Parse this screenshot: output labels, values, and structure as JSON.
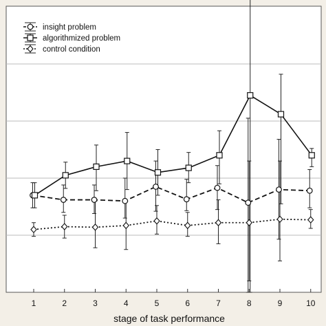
{
  "chart_data": {
    "type": "line",
    "xlabel": "stage of task performance",
    "ylabel": "",
    "categories": [
      "1",
      "2",
      "3",
      "4",
      "5",
      "6",
      "7",
      "8",
      "9",
      "10"
    ],
    "ylim": [
      0,
      5
    ],
    "grid": true,
    "legend_position": "top-left",
    "series": [
      {
        "name": "insight problem",
        "marker": "circle",
        "line_style": "dashed",
        "values": [
          1.7,
          1.62,
          1.62,
          1.6,
          1.85,
          1.63,
          1.83,
          1.57,
          1.8,
          1.78
        ],
        "error_low": [
          1.48,
          1.4,
          1.38,
          1.3,
          1.42,
          1.43,
          1.45,
          0.0,
          0.93,
          1.48
        ],
        "error_high": [
          1.92,
          1.88,
          1.88,
          2.0,
          2.3,
          1.98,
          2.22,
          3.05,
          2.68,
          2.15
        ]
      },
      {
        "name": "algorithmized problem",
        "marker": "square",
        "line_style": "solid",
        "values": [
          1.7,
          2.05,
          2.2,
          2.3,
          2.1,
          2.18,
          2.4,
          3.45,
          3.12,
          2.4
        ],
        "error_low": [
          1.48,
          1.82,
          1.78,
          1.8,
          1.7,
          1.92,
          1.9,
          0.0,
          1.55,
          2.2
        ],
        "error_high": [
          1.92,
          2.28,
          2.58,
          2.8,
          2.5,
          2.45,
          2.83,
          5.3,
          3.82,
          2.52
        ]
      },
      {
        "name": "control condition",
        "marker": "diamond",
        "line_style": "dotted",
        "values": [
          1.1,
          1.15,
          1.14,
          1.17,
          1.25,
          1.17,
          1.22,
          1.22,
          1.28,
          1.27
        ],
        "error_low": [
          0.98,
          0.95,
          0.78,
          0.75,
          1.02,
          0.98,
          0.85,
          0.2,
          0.55,
          1.12
        ],
        "error_high": [
          1.22,
          1.35,
          1.6,
          1.6,
          1.52,
          1.4,
          1.62,
          2.3,
          2.3,
          1.45
        ]
      }
    ]
  }
}
